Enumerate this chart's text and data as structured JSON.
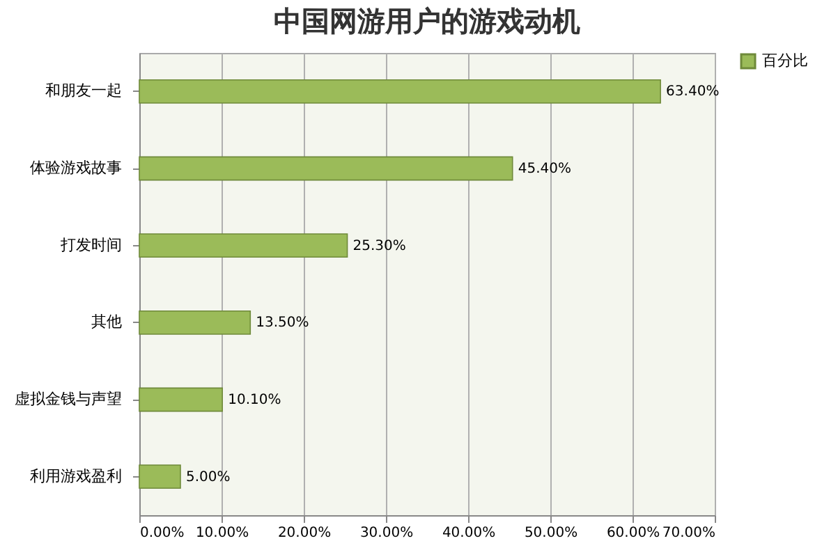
{
  "chart_data": {
    "type": "bar",
    "orientation": "horizontal",
    "title": "中国网游用户的游戏动机",
    "categories": [
      "和朋友一起",
      "体验游戏故事",
      "打发时间",
      "其他",
      "虚拟金钱与声望",
      "利用游戏盈利"
    ],
    "series": [
      {
        "name": "百分比",
        "color": "#9bbb59",
        "values": [
          63.4,
          45.4,
          25.3,
          13.5,
          10.1,
          5.0
        ],
        "value_labels": [
          "63.40%",
          "45.40%",
          "25.30%",
          "13.50%",
          "10.10%",
          "5.00%"
        ]
      }
    ],
    "xlim": [
      0,
      70
    ],
    "xticks": [
      {
        "value": 0,
        "label": "0.00%"
      },
      {
        "value": 10,
        "label": "10.00%"
      },
      {
        "value": 20,
        "label": "20.00%"
      },
      {
        "value": 30,
        "label": "30.00%"
      },
      {
        "value": 40,
        "label": "40.00%"
      },
      {
        "value": 50,
        "label": "50.00%"
      },
      {
        "value": 60,
        "label": "60.00%"
      },
      {
        "value": 70,
        "label": "70.00%"
      }
    ],
    "grid": "x",
    "legend": "right"
  }
}
